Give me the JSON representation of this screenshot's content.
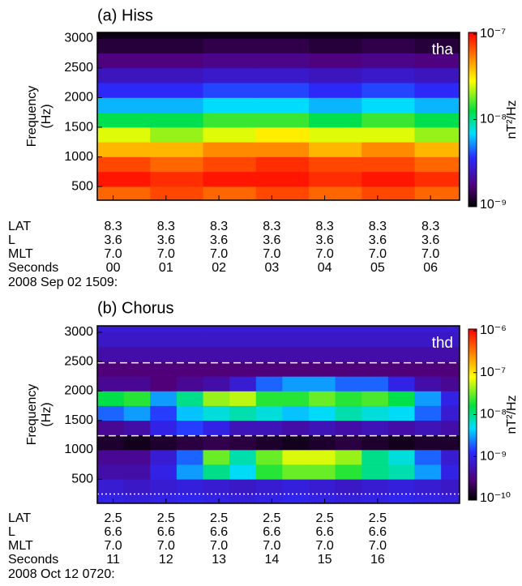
{
  "chart_data": [
    {
      "type": "spectrogram",
      "title": "(a) Hiss",
      "probe": "tha",
      "ylabel": [
        "Frequency",
        "(Hz)"
      ],
      "xlim": [
        -0.3,
        6.55
      ],
      "xticks": [
        {
          "value": 0,
          "label": "00"
        },
        {
          "value": 1,
          "label": "01"
        },
        {
          "value": 2,
          "label": "02"
        },
        {
          "value": 3,
          "label": "03"
        },
        {
          "value": 4,
          "label": "04"
        },
        {
          "value": 5,
          "label": "05"
        },
        {
          "value": 6,
          "label": "06"
        }
      ],
      "ylim": [
        270,
        3100
      ],
      "yticks": [
        500,
        1000,
        1500,
        2000,
        2500,
        3000
      ],
      "x_bins": [
        -0.3,
        0.7,
        1.7,
        2.7,
        3.7,
        4.7,
        5.7,
        6.55
      ],
      "y_bins": [
        270,
        500,
        750,
        1000,
        1250,
        1500,
        1750,
        2000,
        2250,
        2500,
        2750,
        3000,
        3100
      ],
      "values": [
        [
          6e-08,
          7e-08,
          6e-08,
          7e-08,
          6e-08,
          7e-08,
          6e-08
        ],
        [
          9e-08,
          8e-08,
          9e-08,
          9e-08,
          8e-08,
          9e-08,
          8e-08
        ],
        [
          7e-08,
          6e-08,
          7e-08,
          8e-08,
          7e-08,
          7e-08,
          6e-08
        ],
        [
          4e-08,
          4e-08,
          5e-08,
          5e-08,
          4e-08,
          5e-08,
          4e-08
        ],
        [
          2.5e-08,
          2e-08,
          2.5e-08,
          3e-08,
          2.5e-08,
          2.5e-08,
          2e-08
        ],
        [
          1.2e-08,
          1.2e-08,
          1.5e-08,
          1.5e-08,
          1.2e-08,
          1.5e-08,
          1.2e-08
        ],
        [
          6e-09,
          6e-09,
          7e-09,
          7e-09,
          6e-09,
          7e-09,
          6e-09
        ],
        [
          3.5e-09,
          3.5e-09,
          4e-09,
          4e-09,
          3.5e-09,
          4e-09,
          3.5e-09
        ],
        [
          2.5e-09,
          2.5e-09,
          2.7e-09,
          2.7e-09,
          2.5e-09,
          2.7e-09,
          2.5e-09
        ],
        [
          1.8e-09,
          1.8e-09,
          1.9e-09,
          1.9e-09,
          1.8e-09,
          1.9e-09,
          1.8e-09
        ],
        [
          1.3e-09,
          1.3e-09,
          1.4e-09,
          1.4e-09,
          1.3e-09,
          1.4e-09,
          1.3e-09
        ],
        [
          1.1e-09,
          1.1e-09,
          1.1e-09,
          1.1e-09,
          1.1e-09,
          1.1e-09,
          1.1e-09
        ]
      ],
      "zlim": [
        1e-09,
        1e-07
      ],
      "zscale": "log",
      "zticks": [
        {
          "value": 1e-09,
          "label": "10⁻⁹"
        },
        {
          "value": 1e-08,
          "label": "10⁻⁸"
        },
        {
          "value": 1e-07,
          "label": "10⁻⁷"
        }
      ],
      "zlabel": "nT²/Hz",
      "colormap": [
        [
          0,
          "#000000"
        ],
        [
          0.12,
          "#50007a"
        ],
        [
          0.28,
          "#2a2aff"
        ],
        [
          0.42,
          "#00dcff"
        ],
        [
          0.55,
          "#00e040"
        ],
        [
          0.72,
          "#ffff00"
        ],
        [
          0.85,
          "#ff8a00"
        ],
        [
          1,
          "#ff0000"
        ]
      ],
      "ephemeris": {
        "row_labels": [
          "LAT",
          "L",
          "MLT",
          "Seconds"
        ],
        "rows": [
          [
            "8.3",
            "8.3",
            "8.3",
            "8.3",
            "8.3",
            "8.3",
            "8.3"
          ],
          [
            "3.6",
            "3.6",
            "3.6",
            "3.6",
            "3.6",
            "3.6",
            "3.6"
          ],
          [
            "7.0",
            "7.0",
            "7.0",
            "7.0",
            "7.0",
            "7.0",
            "7.0"
          ]
        ]
      },
      "date_label": "2008 Sep 02 1509:"
    },
    {
      "type": "spectrogram",
      "title": "(b) Chorus",
      "probe": "thd",
      "ylabel": [
        "Frequency",
        "(Hz)"
      ],
      "xlim": [
        10.7,
        17.55
      ],
      "xticks": [
        11,
        12,
        13,
        14,
        15,
        16
      ],
      "ylim": [
        90,
        3110
      ],
      "yticks": [
        500,
        1000,
        1500,
        2000,
        2500,
        3000
      ],
      "x_bins": [
        10.7,
        11.2,
        11.7,
        12.2,
        12.7,
        13.2,
        13.7,
        14.2,
        14.7,
        15.2,
        15.7,
        16.2,
        16.7,
        17.2,
        17.55
      ],
      "y_bins": [
        90,
        250,
        500,
        750,
        1000,
        1250,
        1500,
        1750,
        2000,
        2250,
        2500,
        2750,
        3000,
        3110
      ],
      "values": [
        [
          1e-09,
          9e-10,
          1e-09,
          1.1e-09,
          1e-09,
          9e-10,
          1e-09,
          1.1e-09,
          1e-09,
          9e-10,
          1e-09,
          1.1e-09,
          1e-09,
          9e-10
        ],
        [
          8e-10,
          7e-10,
          8e-10,
          9e-10,
          8e-10,
          7e-10,
          8e-10,
          9e-10,
          8e-10,
          7e-10,
          8e-10,
          9e-10,
          8e-10,
          7e-10
        ],
        [
          5e-10,
          5e-10,
          1e-09,
          3e-09,
          1e-08,
          5e-09,
          2e-08,
          3e-08,
          3e-08,
          2e-08,
          1e-08,
          8e-09,
          3e-09,
          1e-09
        ],
        [
          4e-10,
          4e-10,
          8e-10,
          2e-09,
          3e-08,
          8e-09,
          3e-08,
          6e-08,
          6e-08,
          4e-08,
          1e-08,
          6e-09,
          2e-09,
          8e-10
        ],
        [
          1.5e-10,
          1.3e-10,
          1.5e-10,
          1.8e-10,
          2e-10,
          1.8e-10,
          1.5e-10,
          1.3e-10,
          1.5e-10,
          1.8e-10,
          1.5e-10,
          1.3e-10,
          1.5e-10,
          1.5e-10
        ],
        [
          4e-10,
          5e-10,
          1e-09,
          1.5e-09,
          1e-09,
          6e-10,
          6e-10,
          5e-10,
          6e-10,
          5e-10,
          6e-10,
          5e-10,
          6e-10,
          5e-10
        ],
        [
          2e-09,
          3e-09,
          1.5e-09,
          4e-09,
          6e-09,
          8e-09,
          6e-09,
          4e-09,
          5e-09,
          8e-09,
          6e-09,
          5e-09,
          2e-09,
          8e-10
        ],
        [
          1.5e-08,
          2e-08,
          3e-09,
          1e-08,
          4e-08,
          5e-08,
          2e-08,
          2e-08,
          3e-08,
          2e-08,
          2.5e-08,
          1.5e-08,
          3e-09,
          1e-09
        ],
        [
          4e-10,
          4e-10,
          3e-10,
          4e-10,
          5e-10,
          8e-10,
          2e-09,
          3e-09,
          3e-09,
          2e-09,
          2e-09,
          1e-09,
          5e-10,
          4e-10
        ],
        [
          3e-10,
          3e-10,
          3e-10,
          3e-10,
          3e-10,
          3e-10,
          3e-10,
          3e-10,
          3e-10,
          3e-10,
          3e-10,
          3e-10,
          3e-10,
          3e-10
        ],
        [
          5e-10,
          5e-10,
          5e-10,
          5e-10,
          5e-10,
          5e-10,
          5e-10,
          5e-10,
          5e-10,
          5e-10,
          5e-10,
          5e-10,
          5e-10,
          5e-10
        ],
        [
          7e-10,
          7e-10,
          7e-10,
          7e-10,
          7e-10,
          7e-10,
          7e-10,
          7e-10,
          7e-10,
          7e-10,
          7e-10,
          7e-10,
          7e-10,
          7e-10
        ],
        [
          8e-10,
          8e-10,
          8e-10,
          8e-10,
          8e-10,
          8e-10,
          8e-10,
          8e-10,
          8e-10,
          8e-10,
          8e-10,
          8e-10,
          8e-10,
          8e-10
        ]
      ],
      "reference_lines": [
        {
          "value": 2480,
          "style": "dashed"
        },
        {
          "value": 1240,
          "style": "dashed"
        },
        {
          "value": 248,
          "style": "dotted"
        }
      ],
      "zlim": [
        1e-10,
        1e-06
      ],
      "zscale": "log",
      "zticks": [
        {
          "value": 1e-10,
          "label": "10⁻¹⁰"
        },
        {
          "value": 1e-09,
          "label": "10⁻⁹"
        },
        {
          "value": 1e-08,
          "label": "10⁻⁸"
        },
        {
          "value": 1e-07,
          "label": "10⁻⁷"
        },
        {
          "value": 1e-06,
          "label": "10⁻⁶"
        }
      ],
      "zlabel": "nT²/Hz",
      "colormap": [
        [
          0,
          "#000000"
        ],
        [
          0.12,
          "#50007a"
        ],
        [
          0.28,
          "#2a2aff"
        ],
        [
          0.42,
          "#00dcff"
        ],
        [
          0.55,
          "#00e040"
        ],
        [
          0.72,
          "#ffff00"
        ],
        [
          0.85,
          "#ff8a00"
        ],
        [
          1,
          "#ff0000"
        ]
      ],
      "ephemeris": {
        "row_labels": [
          "LAT",
          "L",
          "MLT",
          "Seconds"
        ],
        "rows": [
          [
            "2.5",
            "2.5",
            "2.5",
            "2.5",
            "2.5",
            "2.5"
          ],
          [
            "6.6",
            "6.6",
            "6.6",
            "6.6",
            "6.6",
            "6.6"
          ],
          [
            "7.0",
            "7.0",
            "7.0",
            "7.0",
            "7.0",
            "7.0"
          ]
        ]
      },
      "date_label": "2008 Oct 12 0720:"
    }
  ]
}
